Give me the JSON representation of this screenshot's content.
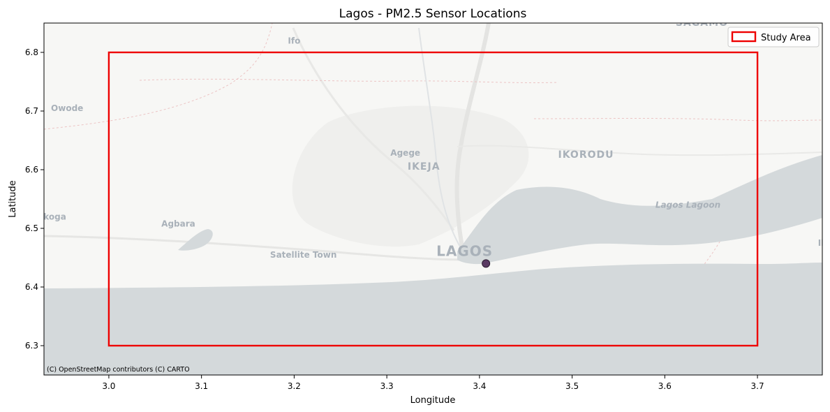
{
  "chart_data": {
    "type": "map",
    "title": "Lagos - PM2.5 Sensor Locations",
    "xlabel": "Longitude",
    "ylabel": "Latitude",
    "xlim": [
      2.93,
      3.77
    ],
    "ylim": [
      6.25,
      6.85
    ],
    "xticks": [
      3.0,
      3.1,
      3.2,
      3.3,
      3.4,
      3.5,
      3.6,
      3.7
    ],
    "yticks": [
      6.3,
      6.4,
      6.5,
      6.6,
      6.7,
      6.8
    ],
    "xtick_labels": [
      "3.0",
      "3.1",
      "3.2",
      "3.3",
      "3.4",
      "3.5",
      "3.6",
      "3.7"
    ],
    "ytick_labels": [
      "6.3",
      "6.4",
      "6.5",
      "6.6",
      "6.7",
      "6.8"
    ],
    "study_area": {
      "lon_min": 3.0,
      "lon_max": 3.7,
      "lat_min": 6.3,
      "lat_max": 6.8
    },
    "sensors": [
      {
        "lon": 3.407,
        "lat": 6.44
      }
    ],
    "legend": {
      "label": "Study Area",
      "position": "top-right"
    },
    "attribution": "(C) OpenStreetMap contributors (C) CARTO",
    "basemap_labels": [
      {
        "text": "SAGAMO",
        "lon": 3.64,
        "lat": 6.845
      },
      {
        "text": "Ifo",
        "lon": 3.2,
        "lat": 6.815
      },
      {
        "text": "Owode",
        "lon": 2.955,
        "lat": 6.7
      },
      {
        "text": "Agege",
        "lon": 3.32,
        "lat": 6.624
      },
      {
        "text": "IKEJA",
        "lon": 3.34,
        "lat": 6.6
      },
      {
        "text": "IKORODU",
        "lon": 3.515,
        "lat": 6.62
      },
      {
        "text": "Lagos Lagoon",
        "lon": 3.625,
        "lat": 6.535
      },
      {
        "text": "Ikoga",
        "lon": 2.94,
        "lat": 6.515
      },
      {
        "text": "Agbara",
        "lon": 3.075,
        "lat": 6.503
      },
      {
        "text": "Satellite Town",
        "lon": 3.21,
        "lat": 6.45
      },
      {
        "text": "LAGOS",
        "lon": 3.384,
        "lat": 6.453
      },
      {
        "text": "Ik",
        "lon": 3.77,
        "lat": 6.47
      }
    ],
    "colors": {
      "study_area": "#ee0000",
      "sensor_fill": "#5a3a63",
      "land": "#f7f7f5",
      "water": "#d4d9db",
      "map_label": "#a9b1b9"
    }
  }
}
